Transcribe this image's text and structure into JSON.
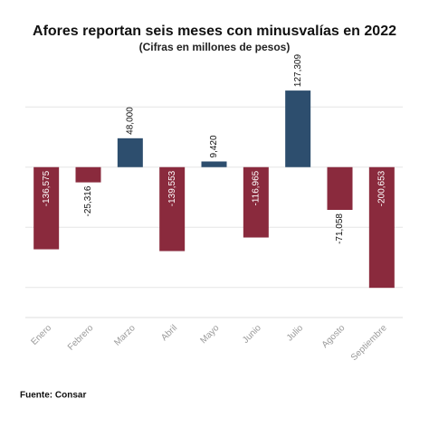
{
  "chart_data": {
    "type": "bar",
    "title": "Afores reportan seis meses con minusvalías en 2022",
    "subtitle": "(Cifras en millones de pesos)",
    "categories": [
      "Enero",
      "Febrero",
      "Marzo",
      "Abril",
      "Mayo",
      "Junio",
      "Julio",
      "Agosto",
      "Septiembre"
    ],
    "values": [
      -136575,
      -25316,
      48000,
      -139553,
      9420,
      -116965,
      127309,
      -71058,
      -200653
    ],
    "value_labels": [
      "-136,575",
      "-25,316",
      "48,000",
      "-139,553",
      "9,420",
      "-116,965",
      "127,309",
      "-71,058",
      "-200,653"
    ],
    "colors": {
      "positive": "#2d4e6e",
      "negative": "#8a2a3d"
    },
    "ylim": [
      -250000,
      150000
    ],
    "yticks": [
      -200000,
      -100000,
      0,
      100000
    ],
    "grid": true,
    "source": "Fuente: Consar"
  }
}
